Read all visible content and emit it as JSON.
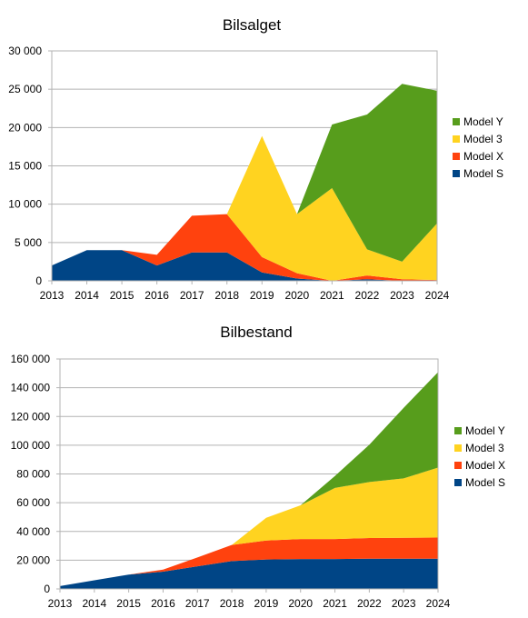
{
  "chart_data": [
    {
      "type": "area",
      "stacked": true,
      "title": "Bilsalget",
      "xlabel": "",
      "ylabel": "",
      "categories": [
        "2013",
        "2014",
        "2015",
        "2016",
        "2017",
        "2018",
        "2019",
        "2020",
        "2021",
        "2022",
        "2023",
        "2024"
      ],
      "ylim": [
        0,
        30000
      ],
      "yticks": [
        0,
        5000,
        10000,
        15000,
        20000,
        25000,
        30000
      ],
      "ytick_labels": [
        "0",
        "5 000",
        "10 000",
        "15 000",
        "20 000",
        "25 000",
        "30 000"
      ],
      "grid": true,
      "legend_position": "right",
      "series": [
        {
          "name": "Model S",
          "color": "#004586",
          "values": [
            2000,
            4000,
            4000,
            2000,
            3700,
            3700,
            1100,
            300,
            0,
            200,
            0,
            0
          ]
        },
        {
          "name": "Model X",
          "color": "#ff420e",
          "values": [
            0,
            0,
            0,
            1400,
            4800,
            5000,
            2000,
            700,
            0,
            500,
            200,
            100
          ]
        },
        {
          "name": "Model 3",
          "color": "#ffd320",
          "values": [
            0,
            0,
            0,
            0,
            0,
            0,
            15800,
            7700,
            12100,
            3400,
            2300,
            7400
          ]
        },
        {
          "name": "Model Y",
          "color": "#579d1c",
          "values": [
            0,
            0,
            0,
            0,
            0,
            0,
            0,
            0,
            8300,
            17600,
            23200,
            17300
          ]
        }
      ]
    },
    {
      "type": "area",
      "stacked": true,
      "title": "Bilbestand",
      "xlabel": "",
      "ylabel": "",
      "categories": [
        "2013",
        "2014",
        "2015",
        "2016",
        "2017",
        "2018",
        "2019",
        "2020",
        "2021",
        "2022",
        "2023",
        "2024"
      ],
      "ylim": [
        0,
        160000
      ],
      "yticks": [
        0,
        20000,
        40000,
        60000,
        80000,
        100000,
        120000,
        140000,
        160000
      ],
      "ytick_labels": [
        "0",
        "20 000",
        "40 000",
        "60 000",
        "80 000",
        "100 000",
        "120 000",
        "140 000",
        "160 000"
      ],
      "grid": true,
      "legend_position": "right",
      "series": [
        {
          "name": "Model S",
          "color": "#004586",
          "values": [
            2000,
            6000,
            10000,
            12000,
            15700,
            19400,
            20500,
            20800,
            20800,
            21000,
            21000,
            21000
          ]
        },
        {
          "name": "Model X",
          "color": "#ff420e",
          "values": [
            0,
            0,
            0,
            1400,
            6200,
            11200,
            13200,
            13900,
            13900,
            14400,
            14600,
            14700
          ]
        },
        {
          "name": "Model 3",
          "color": "#ffd320",
          "values": [
            0,
            0,
            0,
            0,
            0,
            0,
            15800,
            23500,
            35600,
            39000,
            41300,
            48700
          ]
        },
        {
          "name": "Model Y",
          "color": "#579d1c",
          "values": [
            0,
            0,
            0,
            0,
            0,
            0,
            0,
            0,
            8300,
            25900,
            49100,
            66400
          ]
        }
      ]
    }
  ]
}
